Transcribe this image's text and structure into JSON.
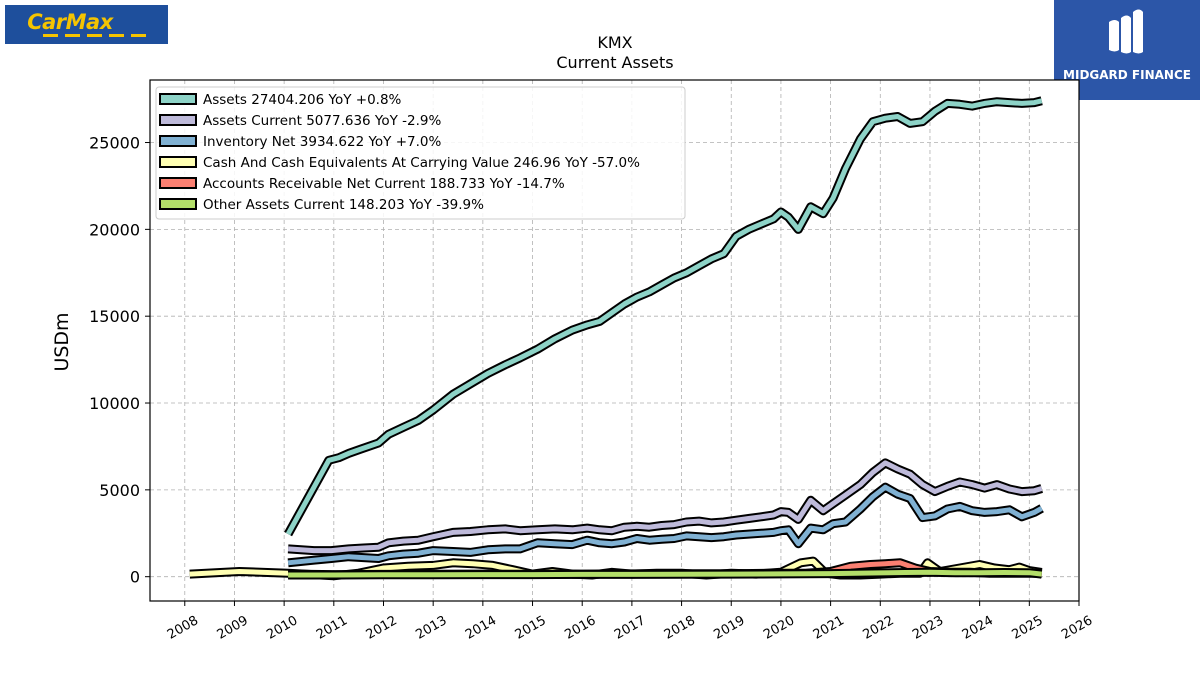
{
  "logos": {
    "left_brand": "CarMax",
    "right_brand": "MIDGARD FINANCE"
  },
  "chart_data": {
    "type": "line",
    "title": "KMX",
    "subtitle": "Current  Assets",
    "xlabel": "",
    "ylabel": "USDm",
    "xlim": [
      2007.3,
      2026.0
    ],
    "ylim": [
      -1400,
      28600
    ],
    "x_ticks": [
      2008,
      2009,
      2010,
      2011,
      2012,
      2013,
      2014,
      2015,
      2016,
      2017,
      2018,
      2019,
      2020,
      2021,
      2022,
      2023,
      2024,
      2025,
      2026
    ],
    "y_ticks": [
      0,
      5000,
      10000,
      15000,
      20000,
      25000
    ],
    "grid": true,
    "legend_position": "top-left",
    "series": [
      {
        "name": "Assets  27404.206 YoY +0.8%",
        "color": "#8dd3c7",
        "x": [
          2010.08,
          2010.9,
          2011.1,
          2011.3,
          2011.55,
          2011.9,
          2012.1,
          2012.4,
          2012.7,
          2013.0,
          2013.4,
          2013.75,
          2014.1,
          2014.45,
          2014.75,
          2015.1,
          2015.45,
          2015.8,
          2016.1,
          2016.35,
          2016.6,
          2016.85,
          2017.1,
          2017.35,
          2017.6,
          2017.85,
          2018.1,
          2018.35,
          2018.6,
          2018.85,
          2019.1,
          2019.35,
          2019.6,
          2019.85,
          2020.0,
          2020.15,
          2020.35,
          2020.6,
          2020.85,
          2021.05,
          2021.3,
          2021.6,
          2021.85,
          2022.1,
          2022.35,
          2022.6,
          2022.85,
          2023.1,
          2023.35,
          2023.6,
          2023.85,
          2024.1,
          2024.35,
          2024.6,
          2024.85,
          2025.1,
          2025.25
        ],
        "y": [
          2450,
          6700,
          6850,
          7100,
          7350,
          7700,
          8200,
          8600,
          9000,
          9600,
          10500,
          11100,
          11700,
          12200,
          12600,
          13100,
          13700,
          14200,
          14500,
          14700,
          15200,
          15700,
          16100,
          16400,
          16800,
          17200,
          17500,
          17900,
          18300,
          18600,
          19600,
          20000,
          20300,
          20600,
          21000,
          20700,
          20000,
          21300,
          20900,
          21800,
          23500,
          25200,
          26200,
          26400,
          26500,
          26100,
          26200,
          26800,
          27250,
          27200,
          27100,
          27250,
          27350,
          27300,
          27250,
          27300,
          27404
        ]
      },
      {
        "name": "Assets Current  5077.636 YoY -2.9%",
        "color": "#bebada",
        "x": [
          2010.08,
          2010.6,
          2010.95,
          2011.3,
          2011.6,
          2011.9,
          2012.1,
          2012.4,
          2012.7,
          2013.0,
          2013.4,
          2013.75,
          2014.1,
          2014.45,
          2014.75,
          2015.1,
          2015.45,
          2015.8,
          2016.1,
          2016.35,
          2016.6,
          2016.85,
          2017.1,
          2017.35,
          2017.6,
          2017.85,
          2018.1,
          2018.35,
          2018.6,
          2018.85,
          2019.1,
          2019.35,
          2019.6,
          2019.85,
          2020.0,
          2020.15,
          2020.35,
          2020.6,
          2020.85,
          2021.05,
          2021.3,
          2021.6,
          2021.85,
          2022.1,
          2022.35,
          2022.6,
          2022.85,
          2023.1,
          2023.35,
          2023.6,
          2023.85,
          2024.1,
          2024.35,
          2024.6,
          2024.85,
          2025.1,
          2025.25
        ],
        "y": [
          1600,
          1500,
          1500,
          1600,
          1650,
          1700,
          1950,
          2050,
          2100,
          2300,
          2550,
          2600,
          2700,
          2750,
          2650,
          2700,
          2750,
          2700,
          2800,
          2700,
          2650,
          2850,
          2900,
          2850,
          2950,
          3000,
          3150,
          3200,
          3100,
          3150,
          3250,
          3350,
          3450,
          3550,
          3750,
          3700,
          3300,
          4400,
          3800,
          4200,
          4700,
          5300,
          6000,
          6550,
          6200,
          5900,
          5300,
          4900,
          5200,
          5450,
          5300,
          5100,
          5300,
          5050,
          4900,
          4950,
          5078
        ]
      },
      {
        "name": "Inventory Net  3934.622 YoY +7.0%",
        "color": "#80b1d3",
        "x": [
          2010.08,
          2010.6,
          2010.95,
          2011.3,
          2011.6,
          2011.9,
          2012.1,
          2012.4,
          2012.7,
          2013.0,
          2013.4,
          2013.75,
          2014.1,
          2014.45,
          2014.75,
          2015.1,
          2015.45,
          2015.8,
          2016.1,
          2016.35,
          2016.6,
          2016.85,
          2017.1,
          2017.35,
          2017.6,
          2017.85,
          2018.1,
          2018.35,
          2018.6,
          2018.85,
          2019.1,
          2019.35,
          2019.6,
          2019.85,
          2020.0,
          2020.15,
          2020.35,
          2020.6,
          2020.85,
          2021.05,
          2021.3,
          2021.6,
          2021.85,
          2022.1,
          2022.35,
          2022.6,
          2022.85,
          2023.1,
          2023.35,
          2023.6,
          2023.85,
          2024.1,
          2024.35,
          2024.6,
          2024.85,
          2025.1,
          2025.25
        ],
        "y": [
          800,
          950,
          1050,
          1150,
          1100,
          1050,
          1200,
          1300,
          1350,
          1500,
          1450,
          1400,
          1550,
          1600,
          1600,
          1950,
          1900,
          1850,
          2100,
          1950,
          1900,
          2000,
          2200,
          2100,
          2150,
          2200,
          2350,
          2300,
          2250,
          2300,
          2400,
          2450,
          2500,
          2550,
          2650,
          2700,
          1900,
          2800,
          2700,
          3050,
          3150,
          3900,
          4600,
          5150,
          4750,
          4500,
          3400,
          3500,
          3900,
          4050,
          3800,
          3700,
          3750,
          3850,
          3450,
          3700,
          3935
        ]
      },
      {
        "name": "Cash And Cash Equivalents At Carrying Value  246.96 YoY -57.0%",
        "color": "#ffffb3",
        "x": [
          2008.1,
          2009.1,
          2010.08,
          2011.0,
          2011.5,
          2012.0,
          2012.5,
          2013.0,
          2013.4,
          2013.8,
          2014.2,
          2014.6,
          2015.0,
          2015.4,
          2015.8,
          2016.2,
          2016.6,
          2017.0,
          2017.5,
          2018.0,
          2018.5,
          2019.0,
          2019.5,
          2020.0,
          2020.4,
          2020.65,
          2020.9,
          2021.2,
          2021.6,
          2022.0,
          2022.4,
          2022.8,
          2022.95,
          2023.2,
          2023.6,
          2024.0,
          2024.3,
          2024.6,
          2024.8,
          2025.0,
          2025.25
        ],
        "y": [
          150,
          300,
          200,
          50,
          200,
          500,
          600,
          650,
          800,
          750,
          650,
          400,
          150,
          300,
          150,
          100,
          250,
          150,
          200,
          200,
          100,
          200,
          150,
          250,
          800,
          900,
          200,
          100,
          100,
          150,
          200,
          200,
          800,
          300,
          500,
          700,
          500,
          400,
          550,
          350,
          247
        ]
      },
      {
        "name": "Accounts Receivable Net Current  188.733 YoY -14.7%",
        "color": "#fb8072",
        "x": [
          2010.08,
          2011.0,
          2012.0,
          2013.0,
          2014.0,
          2015.0,
          2016.0,
          2017.0,
          2018.0,
          2019.0,
          2020.0,
          2020.5,
          2021.0,
          2021.4,
          2021.8,
          2022.1,
          2022.4,
          2022.7,
          2023.0,
          2023.4,
          2023.8,
          2024.2,
          2024.6,
          2025.0,
          2025.25
        ],
        "y": [
          150,
          120,
          130,
          140,
          150,
          140,
          150,
          160,
          170,
          170,
          200,
          200,
          300,
          600,
          700,
          750,
          800,
          500,
          300,
          250,
          250,
          200,
          200,
          200,
          189
        ]
      },
      {
        "name": "Other Assets Current  148.203 YoY -39.9%",
        "color": "#b3de69",
        "x": [
          2010.08,
          2011.0,
          2012.0,
          2013.0,
          2014.0,
          2015.0,
          2016.0,
          2017.0,
          2018.0,
          2019.0,
          2020.0,
          2020.5,
          2021.0,
          2021.5,
          2022.0,
          2022.5,
          2023.0,
          2023.5,
          2024.0,
          2024.5,
          2025.0,
          2025.25
        ],
        "y": [
          100,
          100,
          110,
          110,
          120,
          120,
          130,
          130,
          140,
          150,
          160,
          170,
          180,
          200,
          220,
          240,
          250,
          230,
          230,
          240,
          230,
          148
        ]
      }
    ]
  }
}
